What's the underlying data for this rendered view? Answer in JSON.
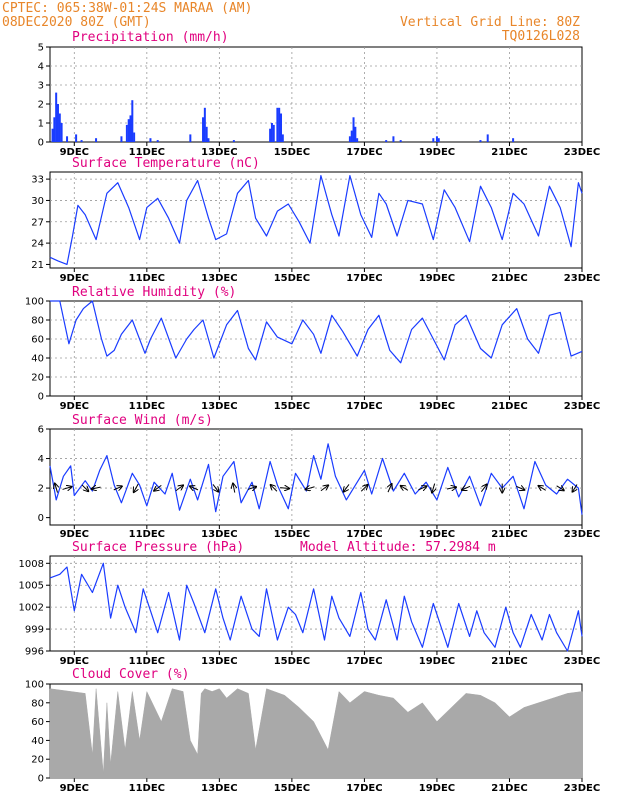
{
  "header": {
    "line1_left": "CPTEC:   065:38W-01:24S  MARAA (AM)",
    "line2_left": "08DEC2020 80Z (GMT)",
    "line1_right": "Vertical Grid Line: 80Z",
    "line2_right": "TQ0126L028"
  },
  "colors": {
    "header": "#e8862a",
    "title": "#e0007f",
    "series": "#1a3cff",
    "cloud": "#a9a9a9",
    "grid": "#9a9a9a"
  },
  "x_axis": {
    "labels": [
      "9DEC",
      "11DEC",
      "13DEC",
      "15DEC",
      "17DEC",
      "19DEC",
      "21DEC",
      "23DEC"
    ],
    "label_day": [
      9,
      11,
      13,
      15,
      17,
      19,
      21,
      23
    ],
    "start_day": 8.33,
    "end_day": 23.0
  },
  "chart_data": [
    {
      "id": "precip",
      "type": "bar",
      "title": "Precipitation (mm/h)",
      "ylim": [
        0,
        5
      ],
      "yticks": [
        0,
        1,
        2,
        3,
        4,
        5
      ],
      "grid": true,
      "x": [
        8.4,
        8.45,
        8.5,
        8.55,
        8.6,
        8.65,
        8.8,
        9.05,
        9.2,
        9.6,
        10.3,
        10.45,
        10.5,
        10.55,
        10.6,
        10.65,
        11.1,
        11.3,
        12.2,
        12.55,
        12.6,
        12.65,
        12.7,
        13.4,
        14.4,
        14.45,
        14.5,
        14.6,
        14.65,
        14.7,
        14.75,
        16.6,
        16.65,
        16.7,
        16.75,
        16.8,
        17.6,
        17.8,
        18.0,
        18.9,
        19.0,
        19.05,
        20.2,
        20.4,
        21.1
      ],
      "values": [
        0.7,
        1.3,
        2.6,
        2.0,
        1.5,
        1.0,
        0.3,
        0.4,
        0.1,
        0.2,
        0.3,
        0.9,
        1.2,
        1.4,
        2.2,
        0.5,
        0.2,
        0.1,
        0.4,
        1.3,
        1.8,
        0.8,
        0.2,
        0.1,
        0.7,
        1.0,
        0.9,
        1.8,
        1.8,
        1.5,
        0.4,
        0.3,
        0.6,
        1.3,
        0.8,
        0.2,
        0.1,
        0.3,
        0.1,
        0.2,
        0.3,
        0.2,
        0.1,
        0.4,
        0.2
      ]
    },
    {
      "id": "temp",
      "type": "line",
      "title": "Surface Temperature (nC)",
      "ylim": [
        20.5,
        34
      ],
      "yticks": [
        21,
        24,
        27,
        30,
        33
      ],
      "grid": true,
      "x": [
        8.33,
        8.55,
        8.8,
        8.95,
        9.1,
        9.3,
        9.6,
        9.9,
        10.2,
        10.5,
        10.8,
        11.0,
        11.3,
        11.6,
        11.9,
        12.1,
        12.4,
        12.7,
        12.9,
        13.2,
        13.5,
        13.8,
        14.0,
        14.3,
        14.6,
        14.9,
        15.2,
        15.5,
        15.8,
        16.1,
        16.3,
        16.6,
        16.9,
        17.2,
        17.4,
        17.6,
        17.9,
        18.2,
        18.6,
        18.9,
        19.2,
        19.5,
        19.9,
        20.2,
        20.5,
        20.8,
        21.1,
        21.4,
        21.8,
        22.1,
        22.4,
        22.7,
        22.9,
        23.0
      ],
      "values": [
        22,
        21.5,
        21,
        25,
        29.3,
        28,
        24.5,
        31,
        32.5,
        29,
        24.5,
        29,
        30.3,
        27.5,
        24,
        30,
        32.8,
        27.5,
        24.5,
        25.3,
        31,
        32.8,
        27.5,
        25,
        28.5,
        29.5,
        27,
        24,
        33.5,
        28,
        25,
        33.5,
        28,
        24.8,
        31,
        29.5,
        25,
        30,
        29.5,
        24.5,
        31.5,
        29,
        24.2,
        32,
        29,
        24.5,
        31,
        29.5,
        25,
        32,
        29,
        23.5,
        32.5,
        31
      ]
    },
    {
      "id": "rh",
      "type": "line",
      "title": "Relative Humidity (%)",
      "ylim": [
        0,
        100
      ],
      "yticks": [
        0,
        20,
        40,
        60,
        80,
        100
      ],
      "grid": true,
      "x": [
        8.33,
        8.6,
        8.85,
        9.05,
        9.25,
        9.5,
        9.75,
        9.9,
        10.1,
        10.3,
        10.6,
        10.95,
        11.1,
        11.4,
        11.8,
        12.1,
        12.3,
        12.55,
        12.85,
        13.2,
        13.5,
        13.8,
        14.0,
        14.3,
        14.6,
        15.0,
        15.3,
        15.6,
        15.8,
        16.1,
        16.4,
        16.8,
        17.1,
        17.4,
        17.7,
        18.0,
        18.3,
        18.6,
        18.9,
        19.2,
        19.5,
        19.8,
        20.2,
        20.5,
        20.8,
        21.2,
        21.5,
        21.8,
        22.1,
        22.4,
        22.7,
        23.0
      ],
      "values": [
        100,
        100,
        55,
        80,
        92,
        100,
        60,
        42,
        48,
        65,
        80,
        45,
        60,
        82,
        40,
        60,
        70,
        80,
        40,
        75,
        90,
        50,
        38,
        78,
        62,
        55,
        80,
        65,
        45,
        85,
        68,
        42,
        70,
        85,
        48,
        35,
        70,
        82,
        60,
        38,
        75,
        85,
        50,
        40,
        75,
        92,
        60,
        45,
        85,
        88,
        42,
        47
      ]
    },
    {
      "id": "wind",
      "type": "line",
      "title": "Surface Wind (m/s)",
      "ylim": [
        -0.5,
        6
      ],
      "yticks": [
        0,
        2,
        4,
        6
      ],
      "grid": true,
      "x": [
        8.33,
        8.5,
        8.7,
        8.9,
        9.0,
        9.3,
        9.5,
        9.7,
        9.9,
        10.1,
        10.3,
        10.6,
        10.8,
        11.0,
        11.2,
        11.5,
        11.7,
        11.9,
        12.2,
        12.4,
        12.7,
        12.9,
        13.1,
        13.4,
        13.6,
        13.9,
        14.1,
        14.4,
        14.6,
        14.9,
        15.1,
        15.4,
        15.6,
        15.8,
        16.0,
        16.2,
        16.5,
        16.8,
        17.0,
        17.2,
        17.5,
        17.8,
        18.1,
        18.4,
        18.7,
        19.0,
        19.3,
        19.6,
        19.9,
        20.2,
        20.5,
        20.8,
        21.1,
        21.4,
        21.7,
        22.0,
        22.3,
        22.6,
        22.9,
        23.0
      ],
      "values": [
        3.5,
        1.2,
        2.8,
        3.5,
        1.5,
        2.5,
        1.8,
        3.2,
        4.2,
        2.2,
        1.0,
        3.0,
        2.2,
        0.8,
        2.4,
        1.6,
        3.0,
        0.5,
        2.6,
        1.2,
        3.6,
        0.4,
        2.8,
        3.8,
        1.0,
        2.4,
        0.6,
        3.8,
        2.2,
        0.6,
        3.0,
        1.8,
        4.2,
        2.6,
        5.0,
        2.8,
        1.2,
        2.4,
        3.2,
        1.6,
        4.0,
        1.8,
        3.0,
        1.6,
        2.4,
        1.2,
        3.4,
        1.4,
        2.8,
        0.8,
        3.0,
        2.0,
        2.8,
        0.6,
        3.8,
        2.2,
        1.6,
        2.6,
        2.0,
        0.2
      ]
    },
    {
      "id": "pres",
      "type": "line",
      "title": "Surface Pressure (hPa)",
      "annotation": "Model Altitude: 57.2984  m",
      "ylim": [
        996,
        1009
      ],
      "yticks": [
        996,
        999,
        1002,
        1005,
        1008
      ],
      "grid": true,
      "x": [
        8.33,
        8.6,
        8.8,
        9.0,
        9.2,
        9.5,
        9.8,
        10.0,
        10.2,
        10.4,
        10.7,
        10.9,
        11.1,
        11.3,
        11.6,
        11.9,
        12.1,
        12.3,
        12.6,
        12.9,
        13.1,
        13.3,
        13.6,
        13.9,
        14.1,
        14.3,
        14.6,
        14.9,
        15.1,
        15.3,
        15.6,
        15.9,
        16.1,
        16.3,
        16.6,
        16.9,
        17.1,
        17.3,
        17.6,
        17.9,
        18.1,
        18.3,
        18.6,
        18.9,
        19.1,
        19.3,
        19.6,
        19.9,
        20.1,
        20.3,
        20.6,
        20.9,
        21.1,
        21.3,
        21.6,
        21.9,
        22.1,
        22.3,
        22.6,
        22.9,
        23.0
      ],
      "values": [
        1006,
        1006.5,
        1007.5,
        1001.5,
        1006.5,
        1004,
        1008,
        1000.5,
        1005,
        1002,
        998.5,
        1004.5,
        1001.5,
        998.5,
        1004,
        997.5,
        1005,
        1002.5,
        998.5,
        1004.5,
        1000.5,
        997.5,
        1003.5,
        999,
        998,
        1004.5,
        997.5,
        1002,
        1001,
        998.5,
        1004.5,
        997.5,
        1003.5,
        1000.5,
        998,
        1004,
        999,
        997.5,
        1003,
        997.5,
        1003.5,
        1000,
        996.5,
        1002.5,
        999.5,
        996.5,
        1002.5,
        998,
        1001.5,
        998.5,
        996.5,
        1002,
        998.5,
        996.5,
        1001,
        997.5,
        1001,
        998.5,
        996,
        1001.5,
        998
      ]
    },
    {
      "id": "cloud",
      "type": "area",
      "title": "Cloud Cover (%)",
      "ylim": [
        0,
        100
      ],
      "yticks": [
        0,
        20,
        40,
        60,
        80,
        100
      ],
      "grid": false,
      "x": [
        8.33,
        9.3,
        9.5,
        9.6,
        9.8,
        9.9,
        10.0,
        10.2,
        10.4,
        10.6,
        10.8,
        11.0,
        11.4,
        11.7,
        12.0,
        12.2,
        12.4,
        12.5,
        12.6,
        12.8,
        13.0,
        13.2,
        13.5,
        13.8,
        14.0,
        14.3,
        14.8,
        15.2,
        15.6,
        16.0,
        16.3,
        16.6,
        17.0,
        17.4,
        17.8,
        18.2,
        18.6,
        19.0,
        19.4,
        19.8,
        20.2,
        20.6,
        21.0,
        21.4,
        21.8,
        22.2,
        22.6,
        23.0
      ],
      "values": [
        95,
        90,
        25,
        95,
        5,
        80,
        15,
        92,
        30,
        92,
        40,
        92,
        60,
        95,
        92,
        40,
        25,
        90,
        95,
        92,
        95,
        85,
        95,
        90,
        30,
        95,
        88,
        75,
        60,
        30,
        92,
        80,
        92,
        88,
        85,
        70,
        80,
        60,
        75,
        90,
        88,
        80,
        65,
        75,
        80,
        85,
        90,
        92
      ]
    }
  ],
  "wind_vectors": [
    {
      "day": 8.5,
      "u": -0.3,
      "v": 1
    },
    {
      "day": 8.8,
      "u": 1,
      "v": 0.3
    },
    {
      "day": 9.3,
      "u": 0.7,
      "v": -0.7
    },
    {
      "day": 9.6,
      "u": -1,
      "v": -0.2
    },
    {
      "day": 10.2,
      "u": 0.9,
      "v": 0.4
    },
    {
      "day": 10.7,
      "u": -0.5,
      "v": -0.9
    },
    {
      "day": 11.3,
      "u": -0.8,
      "v": -0.6
    },
    {
      "day": 11.9,
      "u": 0.8,
      "v": 0.6
    },
    {
      "day": 12.3,
      "u": -0.9,
      "v": 0.4
    },
    {
      "day": 12.9,
      "u": 0.6,
      "v": -0.8
    },
    {
      "day": 13.4,
      "u": -0.2,
      "v": 1
    },
    {
      "day": 13.9,
      "u": 0.9,
      "v": 0.3
    },
    {
      "day": 14.5,
      "u": -0.7,
      "v": 0.7
    },
    {
      "day": 14.8,
      "u": 1,
      "v": -0.1
    },
    {
      "day": 15.5,
      "u": -1,
      "v": -0.3
    },
    {
      "day": 15.9,
      "u": 0.8,
      "v": 0.6
    },
    {
      "day": 16.5,
      "u": -0.6,
      "v": -0.8
    },
    {
      "day": 17.0,
      "u": 0.7,
      "v": 0.7
    },
    {
      "day": 17.7,
      "u": 0.4,
      "v": 0.9
    },
    {
      "day": 18.1,
      "u": -0.8,
      "v": 0.5
    },
    {
      "day": 18.6,
      "u": 0.9,
      "v": 0.4
    },
    {
      "day": 18.9,
      "u": -0.3,
      "v": -1
    },
    {
      "day": 19.4,
      "u": 1,
      "v": 0.2
    },
    {
      "day": 19.8,
      "u": -0.9,
      "v": -0.4
    },
    {
      "day": 20.3,
      "u": 0.6,
      "v": 0.8
    },
    {
      "day": 20.8,
      "u": 0,
      "v": -1
    },
    {
      "day": 21.3,
      "u": 0.9,
      "v": -0.4
    },
    {
      "day": 21.9,
      "u": -0.8,
      "v": 0.5
    },
    {
      "day": 22.4,
      "u": 0.8,
      "v": -0.5
    },
    {
      "day": 22.8,
      "u": -0.5,
      "v": -0.8
    }
  ]
}
